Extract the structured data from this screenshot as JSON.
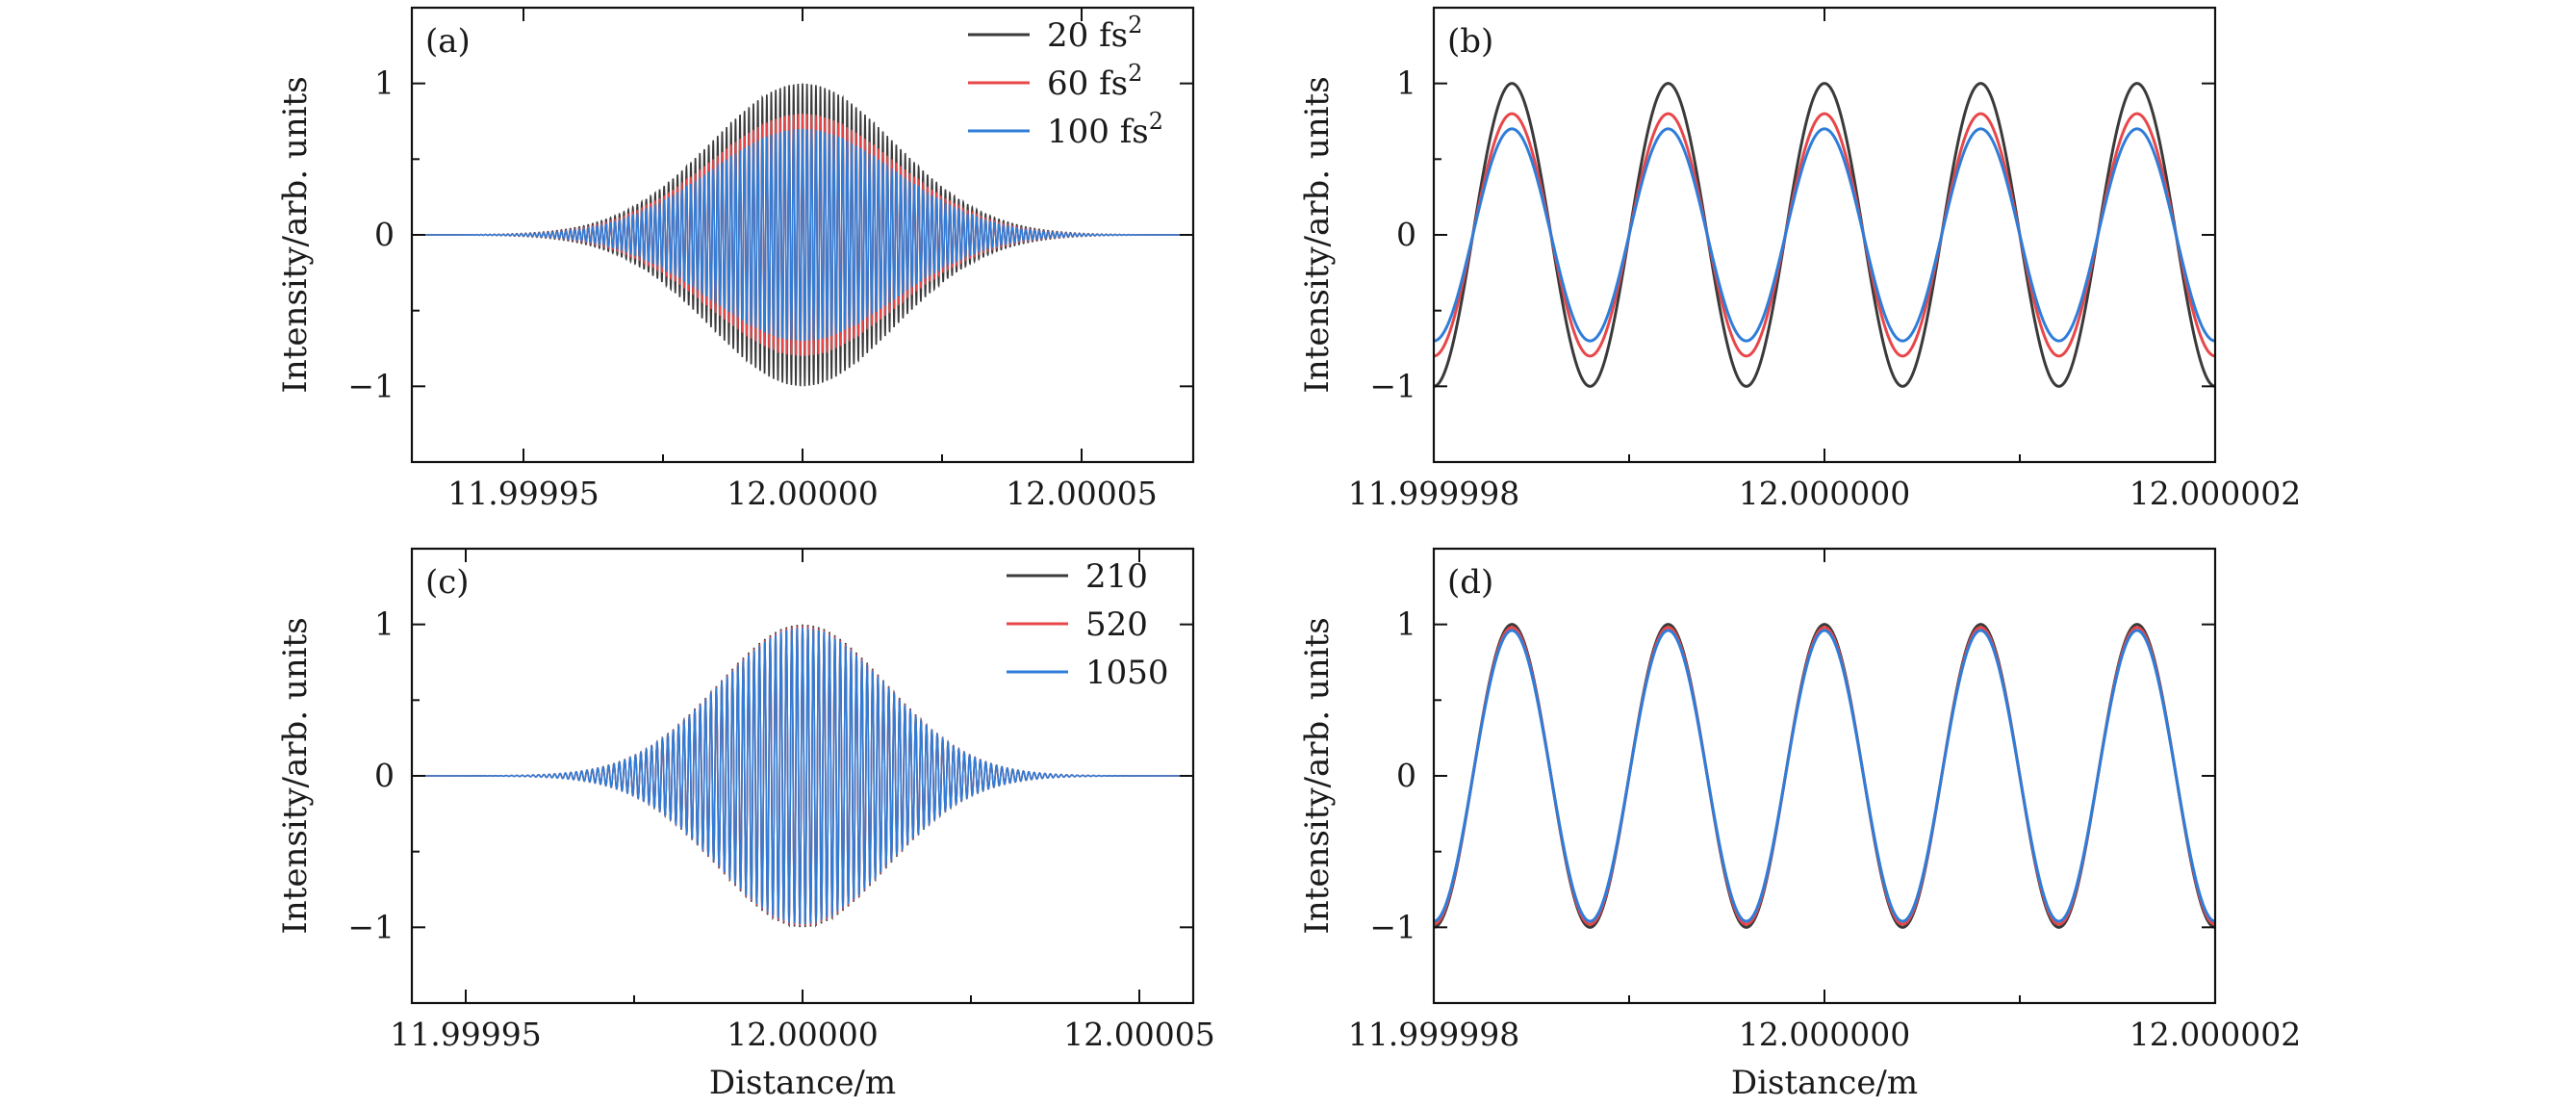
{
  "figure": {
    "colors": {
      "black": "#3a3a3a",
      "red": "#e8474a",
      "blue": "#2f7dd8"
    }
  },
  "chart_data": [
    {
      "id": "a",
      "type": "line",
      "panel_label": "(a)",
      "xlabel": "",
      "ylabel": "Intensity/arb. units",
      "xlim": [
        11.99993,
        12.00007
      ],
      "ylim": [
        -1.5,
        1.5
      ],
      "xticks": [
        11.99995,
        12.0,
        12.00005
      ],
      "xtick_labels": [
        "11.99995",
        "12.00000",
        "12.00005"
      ],
      "yticks": [
        -1,
        0,
        1
      ],
      "ytick_labels": [
        "−1",
        "0",
        "1"
      ],
      "carrier_period_m": 8e-07,
      "envelope_sigma_m": 1.65e-05,
      "envelope_center_m": 12.0,
      "series": [
        {
          "name": "20 fs",
          "superscript": "2",
          "color": "black",
          "amplitude": 1.0
        },
        {
          "name": "60 fs",
          "superscript": "2",
          "color": "red",
          "amplitude": 0.8
        },
        {
          "name": "100 fs",
          "superscript": "2",
          "color": "blue",
          "amplitude": 0.7
        }
      ],
      "legend": "top-right"
    },
    {
      "id": "b",
      "type": "line",
      "panel_label": "(b)",
      "xlabel": "",
      "ylabel": "Intensity/arb. units",
      "xlim": [
        11.999998,
        12.000002
      ],
      "ylim": [
        -1.5,
        1.5
      ],
      "xticks": [
        11.999998,
        12.0,
        12.000002
      ],
      "xtick_labels": [
        "11.999998",
        "12.000000",
        "12.000002"
      ],
      "yticks": [
        -1,
        0,
        1
      ],
      "ytick_labels": [
        "−1",
        "0",
        "1"
      ],
      "carrier_period_m": 8e-07,
      "series": [
        {
          "name": "20 fs2",
          "color": "black",
          "amplitude": 1.0
        },
        {
          "name": "60 fs2",
          "color": "red",
          "amplitude": 0.8
        },
        {
          "name": "100 fs2",
          "color": "blue",
          "amplitude": 0.7
        }
      ]
    },
    {
      "id": "c",
      "type": "line",
      "panel_label": "(c)",
      "xlabel": "Distance/m",
      "ylabel": "Intensity/arb. units",
      "xlim": [
        11.999942,
        12.000058
      ],
      "ylim": [
        -1.5,
        1.5
      ],
      "xticks": [
        11.99995,
        12.0,
        12.00005
      ],
      "xtick_labels": [
        "11.99995",
        "12.00000",
        "12.00005"
      ],
      "yticks": [
        -1,
        0,
        1
      ],
      "ytick_labels": [
        "−1",
        "0",
        "1"
      ],
      "carrier_period_m": 8e-07,
      "envelope_sigma_m": 1.25e-05,
      "envelope_center_m": 12.0,
      "series": [
        {
          "name": "210",
          "color": "black",
          "amplitude": 1.0
        },
        {
          "name": "520",
          "color": "red",
          "amplitude": 0.99
        },
        {
          "name": "1050",
          "color": "blue",
          "amplitude": 0.98
        }
      ],
      "legend": "top-right"
    },
    {
      "id": "d",
      "type": "line",
      "panel_label": "(d)",
      "xlabel": "Distance/m",
      "ylabel": "Intensity/arb. units",
      "xlim": [
        11.999998,
        12.000002
      ],
      "ylim": [
        -1.5,
        1.5
      ],
      "xticks": [
        11.999998,
        12.0,
        12.000002
      ],
      "xtick_labels": [
        "11.999998",
        "12.000000",
        "12.000002"
      ],
      "yticks": [
        -1,
        0,
        1
      ],
      "ytick_labels": [
        "−1",
        "0",
        "1"
      ],
      "carrier_period_m": 8e-07,
      "series": [
        {
          "name": "210",
          "color": "black",
          "amplitude": 1.0
        },
        {
          "name": "520",
          "color": "red",
          "amplitude": 0.98
        },
        {
          "name": "1050",
          "color": "blue",
          "amplitude": 0.96
        }
      ]
    }
  ]
}
